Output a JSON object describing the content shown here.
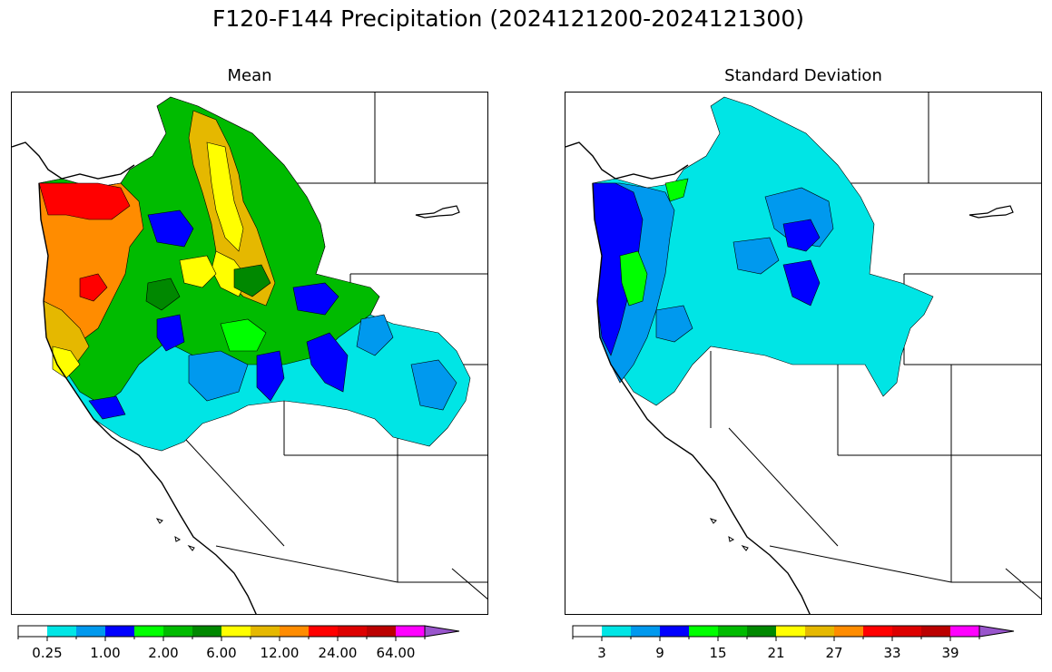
{
  "figure": {
    "title": "F120-F144 Precipitation (2024121200-2024121300)"
  },
  "panels": [
    {
      "title": "Mean",
      "colorbar": {
        "colors": [
          "#ffffff",
          "#00e5e5",
          "#0099ee",
          "#0000ff",
          "#00ff00",
          "#00bb00",
          "#008800",
          "#ffff00",
          "#e5b800",
          "#ff8c00",
          "#ff0000",
          "#dd0000",
          "#bb0000",
          "#ff00ff",
          "#9955cc"
        ],
        "tick_labels": [
          "0.25",
          "1.00",
          "2.00",
          "6.00",
          "12.00",
          "24.00",
          "64.00"
        ],
        "extend": "max"
      }
    },
    {
      "title": "Standard Deviation",
      "colorbar": {
        "colors": [
          "#ffffff",
          "#00e5e5",
          "#0099ee",
          "#0000ff",
          "#00ff00",
          "#00bb00",
          "#008800",
          "#ffff00",
          "#e5b800",
          "#ff8c00",
          "#ff0000",
          "#dd0000",
          "#bb0000",
          "#ff00ff",
          "#9955cc"
        ],
        "tick_labels": [
          "3",
          "9",
          "15",
          "21",
          "27",
          "33",
          "39"
        ],
        "extend": "max"
      }
    }
  ]
}
